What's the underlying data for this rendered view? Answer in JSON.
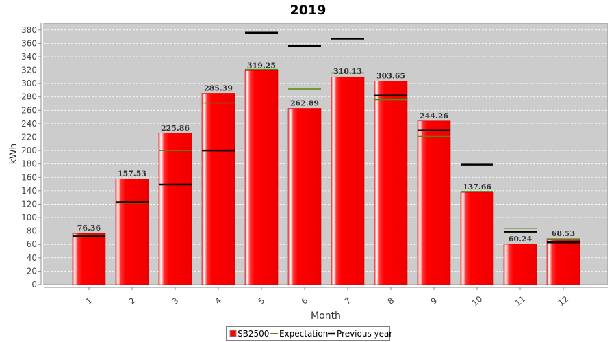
{
  "chart_data": {
    "type": "bar",
    "title": "2019",
    "xlabel": "Month",
    "ylabel": "kWh",
    "ylim": [
      0,
      390
    ],
    "ytick_step": 20,
    "grid": true,
    "legend_position": "bottom-center",
    "categories": [
      "1",
      "2",
      "3",
      "4",
      "5",
      "6",
      "7",
      "8",
      "9",
      "10",
      "11",
      "12"
    ],
    "series": [
      {
        "name": "SB2500",
        "kind": "bar",
        "color": "#ff0000",
        "values": [
          76.36,
          157.53,
          225.86,
          285.39,
          319.25,
          262.89,
          310.13,
          303.65,
          244.26,
          137.66,
          60.24,
          68.53
        ],
        "labels": [
          "76.36",
          "157.53",
          "225.86",
          "285.39",
          "319.25",
          "262.89",
          "310.13",
          "303.65",
          "244.26",
          "137.66",
          "60.24",
          "68.53"
        ]
      },
      {
        "name": "Expectation",
        "kind": "marker",
        "color": "#4f8a10",
        "values": [
          74,
          122,
          200,
          271,
          321,
          292,
          316,
          276,
          221,
          139,
          84,
          67
        ]
      },
      {
        "name": "Previous year",
        "kind": "marker",
        "color": "#000000",
        "values": [
          72,
          123,
          149,
          200,
          376,
          356,
          367,
          282,
          230,
          179,
          79,
          63
        ]
      }
    ]
  }
}
